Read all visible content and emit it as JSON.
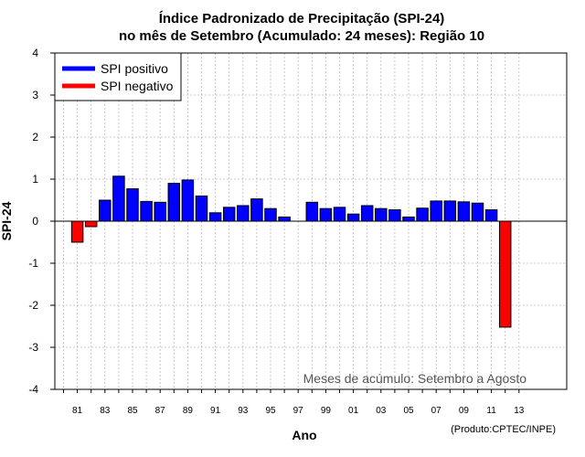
{
  "chart_data": {
    "type": "bar",
    "title_line1": "Índice Padronizado de Precipitação (SPI-24)",
    "title_line2": "no mês de Setembro (Acumulado: 24 meses): Região 10",
    "xlabel": "Ano",
    "ylabel": "SPI-24",
    "ylim": [
      -4,
      4
    ],
    "yticks": [
      "4",
      "3",
      "2",
      "1",
      "0",
      "-1",
      "-2",
      "-3",
      "-4"
    ],
    "xtick_labels": [
      "81",
      "83",
      "85",
      "87",
      "89",
      "91",
      "93",
      "95",
      "97",
      "99",
      "01",
      "03",
      "05",
      "07",
      "09",
      "11",
      "13"
    ],
    "annotation": "Meses de acúmulo: Setembro a Agosto",
    "credit": "(Produto:CPTEC/INPE)",
    "legend": [
      {
        "label": "SPI positivo",
        "color": "#0000ff"
      },
      {
        "label": "SPI negativo",
        "color": "#ff0000"
      }
    ],
    "positive_color": "#0000ff",
    "negative_color": "#ff0000",
    "years": [
      1980,
      1981,
      1982,
      1983,
      1984,
      1985,
      1986,
      1987,
      1988,
      1989,
      1990,
      1991,
      1992,
      1993,
      1994,
      1995,
      1996,
      1997,
      1998,
      1999,
      2000,
      2001,
      2002,
      2003,
      2004,
      2005,
      2006,
      2007,
      2008,
      2009,
      2010,
      2011,
      2012,
      2013
    ],
    "values": [
      null,
      -0.5,
      -0.13,
      0.5,
      1.07,
      0.77,
      0.47,
      0.45,
      0.9,
      0.98,
      0.6,
      0.2,
      0.33,
      0.37,
      0.53,
      0.3,
      0.1,
      null,
      0.45,
      0.3,
      0.33,
      0.17,
      0.37,
      0.3,
      0.27,
      0.1,
      0.31,
      0.48,
      0.48,
      0.46,
      0.43,
      0.27,
      -2.52,
      null
    ]
  }
}
